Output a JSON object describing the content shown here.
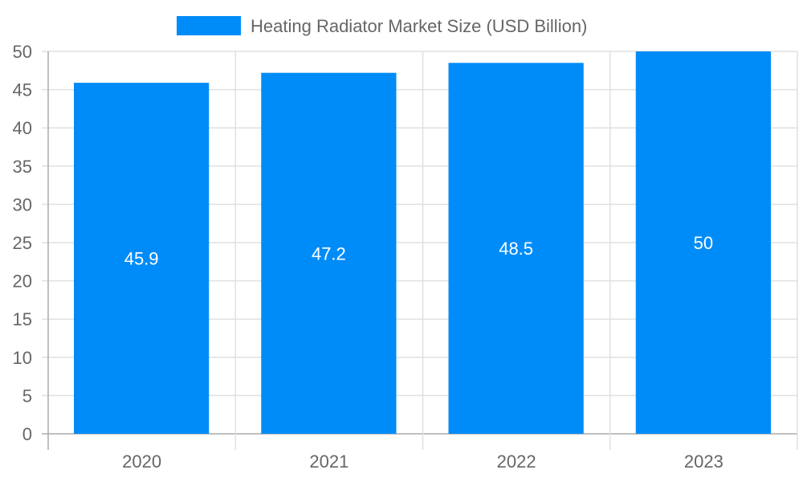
{
  "chart_data": {
    "type": "bar",
    "title": "",
    "legend": [
      {
        "label": "Heating Radiator Market Size (USD Billion)",
        "color": "#008cf8"
      }
    ],
    "legend_position": "top",
    "categories": [
      "2020",
      "2021",
      "2022",
      "2023"
    ],
    "series": [
      {
        "name": "Heating Radiator Market Size (USD Billion)",
        "values": [
          45.9,
          47.2,
          48.5,
          50
        ]
      }
    ],
    "data_labels": [
      "45.9",
      "47.2",
      "48.5",
      "50"
    ],
    "xlabel": "",
    "ylabel": "",
    "ylim": [
      0,
      50
    ],
    "yticks": [
      "0",
      "5",
      "10",
      "15",
      "20",
      "25",
      "30",
      "35",
      "40",
      "45",
      "50"
    ],
    "grid": true
  }
}
